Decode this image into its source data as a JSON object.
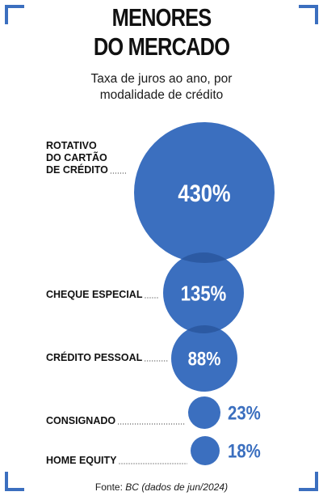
{
  "title_line1": "MENORES",
  "title_line2": "DO MERCADO",
  "subtitle_line1": "Taxa de juros ao ano, por",
  "subtitle_line2": "modalidade de crédito",
  "source": {
    "prefix": "Fonte:",
    "name": "BC",
    "date": "(dados de jun/2024)"
  },
  "colors": {
    "bubble": "#3b6fbf",
    "bubble_overlap": "#2c5aa3",
    "accent": "#3b6fbf"
  },
  "chart_data": {
    "type": "bubble",
    "title": "MENORES DO MERCADO",
    "subtitle": "Taxa de juros ao ano, por modalidade de crédito",
    "unit": "%",
    "categories": [
      [
        "ROTATIVO",
        "DO CARTÃO",
        "DE CRÉDITO"
      ],
      [
        "CHEQUE ESPECIAL"
      ],
      [
        "CRÉDITO PESSOAL"
      ],
      [
        "CONSIGNADO"
      ],
      [
        "HOME EQUITY"
      ]
    ],
    "values": [
      430,
      135,
      88,
      23,
      18
    ],
    "value_labels": [
      "430%",
      "135%",
      "88%",
      "23%",
      "18%"
    ]
  }
}
